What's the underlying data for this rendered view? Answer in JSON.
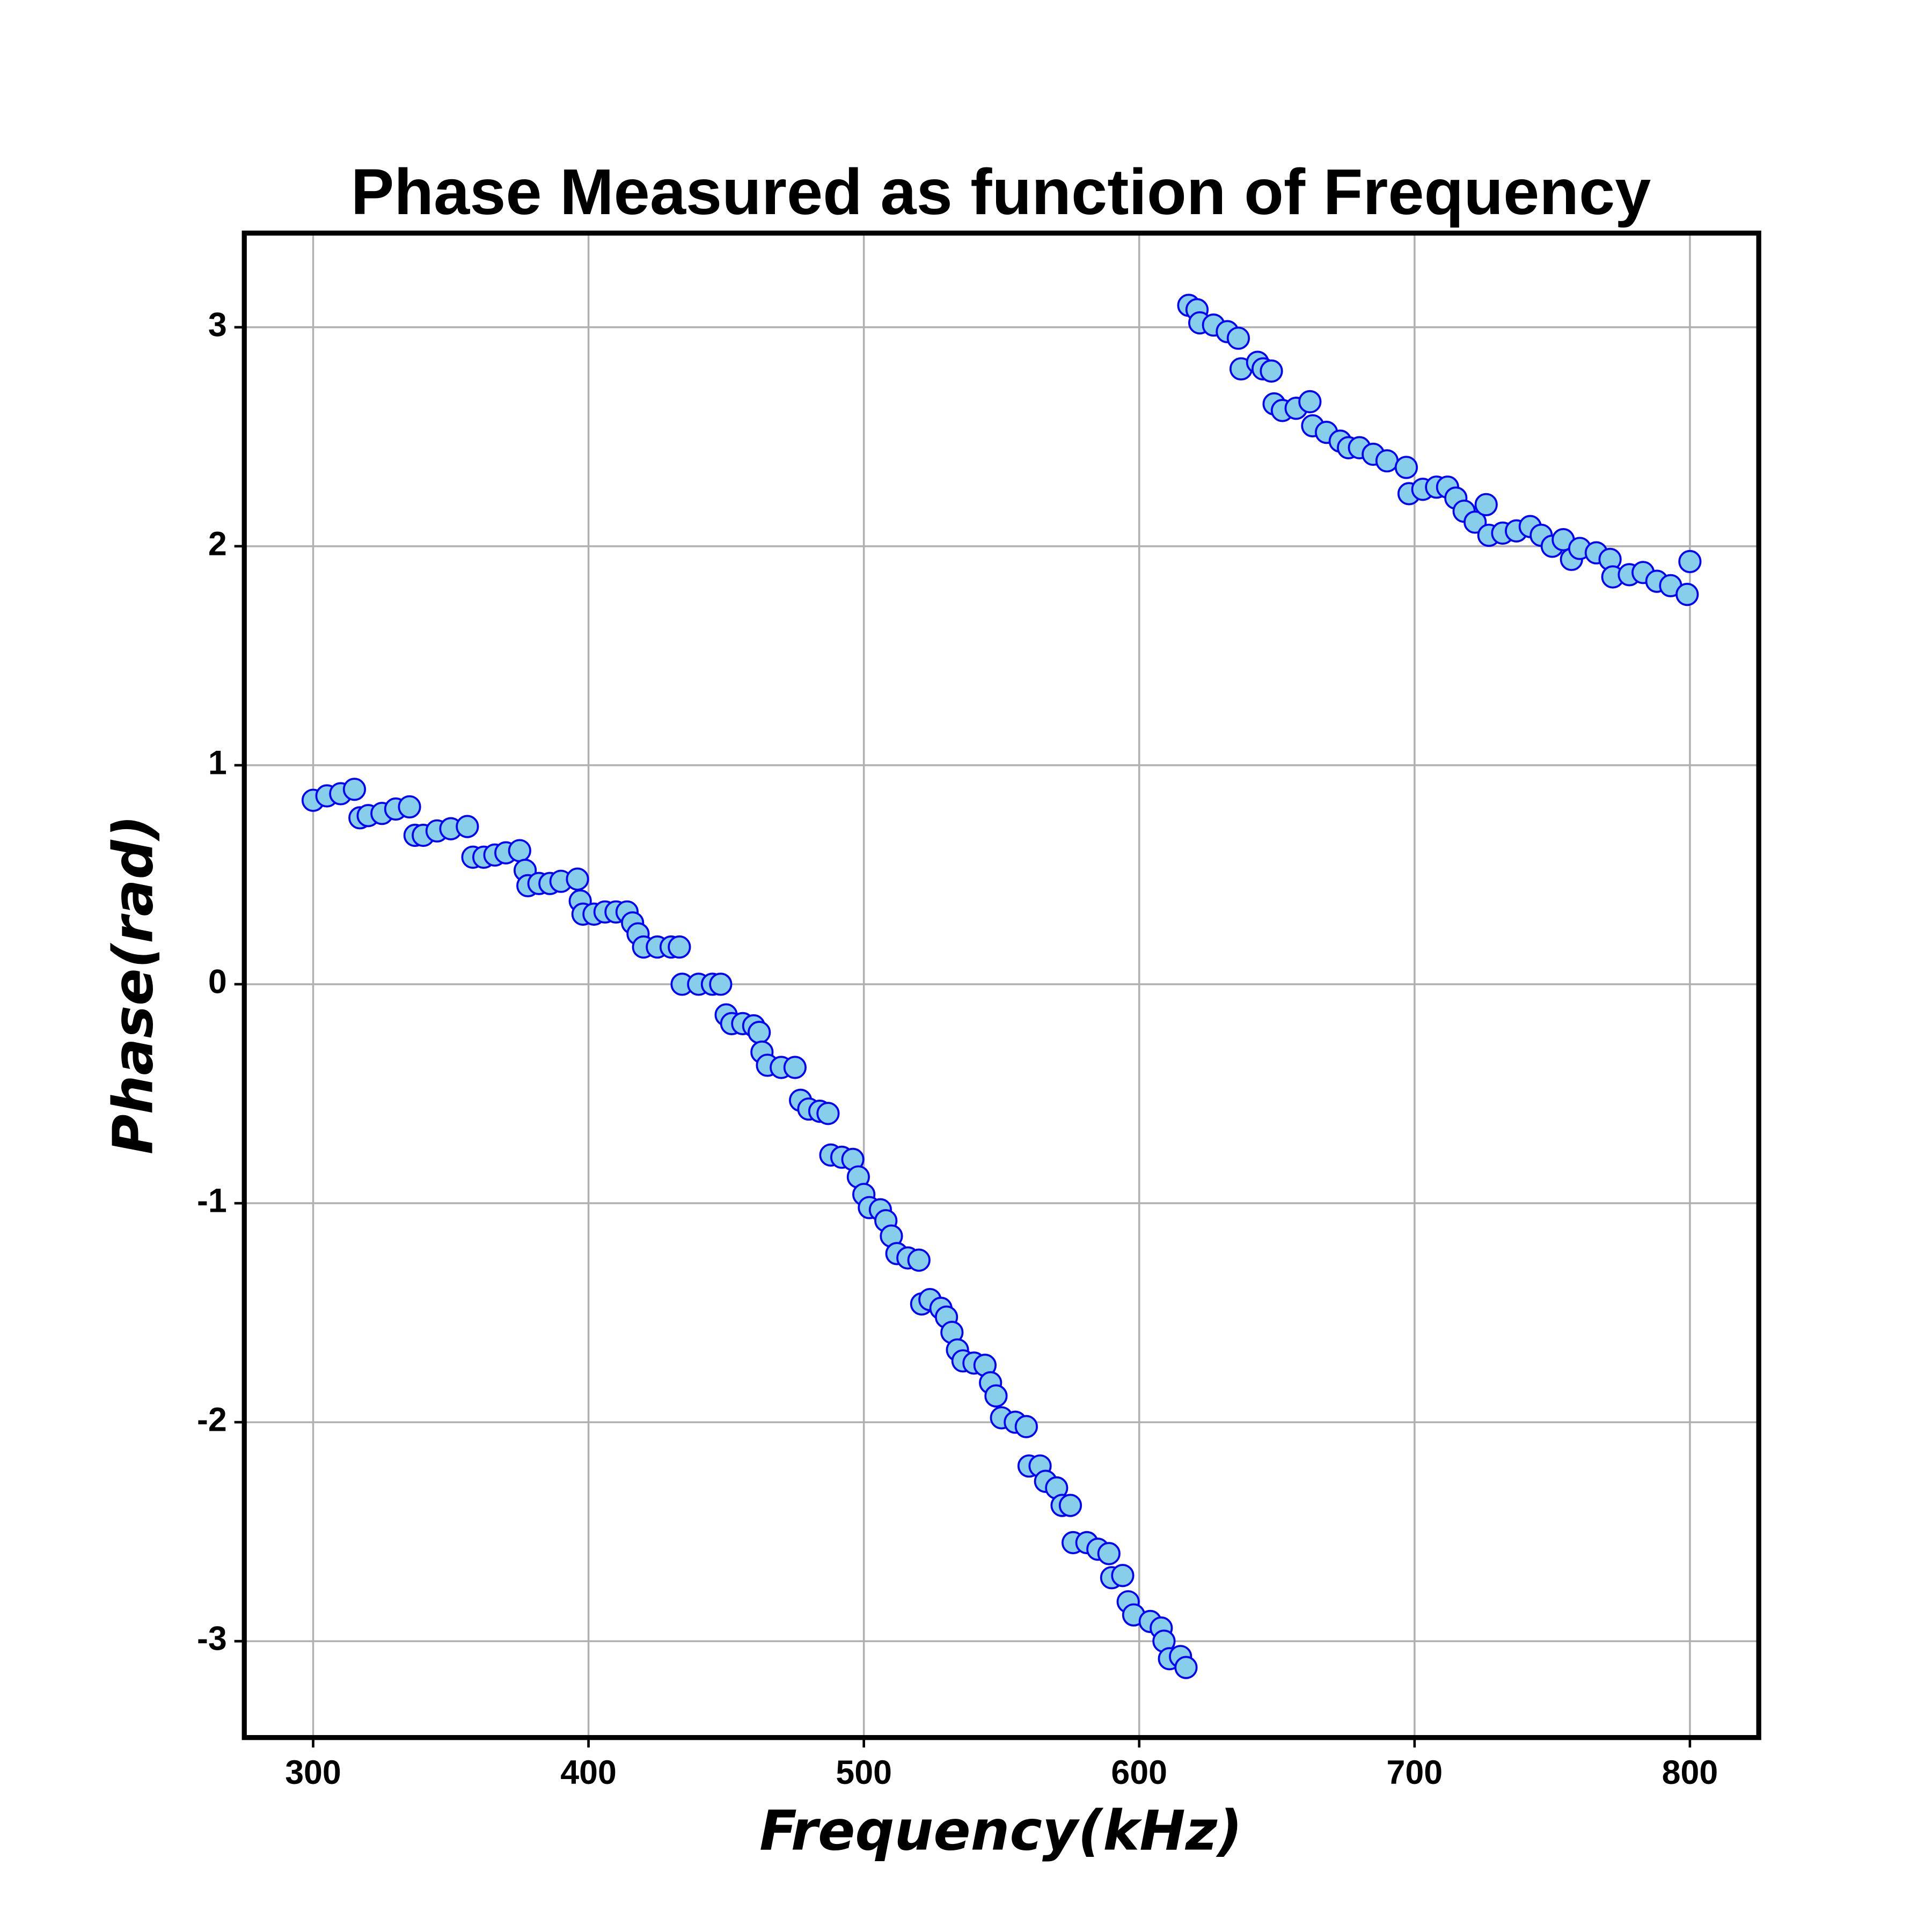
{
  "chart_data": {
    "type": "scatter",
    "title": "Phase Measured as function of Frequency",
    "x_label": "Frequency(kHz)",
    "y_label": "Phase(rad)",
    "x": [
      300,
      305,
      310,
      315,
      317,
      320,
      325,
      330,
      335,
      337,
      340,
      345,
      350,
      356,
      358,
      362,
      366,
      370,
      375,
      377,
      378,
      382,
      386,
      390,
      396,
      397,
      398,
      402,
      406,
      410,
      414,
      416,
      418,
      420,
      425,
      430,
      433,
      434,
      440,
      445,
      448,
      450,
      452,
      456,
      460,
      462,
      463,
      465,
      470,
      475,
      477,
      480,
      484,
      487,
      488,
      492,
      496,
      498,
      500,
      502,
      506,
      508,
      510,
      512,
      516,
      520,
      521,
      524,
      528,
      530,
      532,
      534,
      536,
      540,
      544,
      546,
      548,
      550,
      555,
      559,
      560,
      564,
      566,
      570,
      572,
      575,
      576,
      581,
      585,
      589,
      590,
      594,
      596,
      598,
      604,
      608,
      609,
      611,
      615,
      617,
      618,
      621,
      622,
      627,
      632,
      636,
      637,
      643,
      645,
      648,
      649,
      652,
      657,
      662,
      663,
      668,
      673,
      676,
      680,
      685,
      690,
      697,
      698,
      703,
      708,
      712,
      715,
      718,
      722,
      726,
      727,
      732,
      737,
      742,
      746,
      750,
      754,
      757,
      760,
      766,
      771,
      772,
      778,
      783,
      788,
      793,
      799,
      800
    ],
    "values": [
      0.84,
      0.86,
      0.87,
      0.89,
      0.76,
      0.77,
      0.78,
      0.8,
      0.81,
      0.68,
      0.68,
      0.7,
      0.71,
      0.72,
      0.58,
      0.58,
      0.59,
      0.6,
      0.61,
      0.52,
      0.45,
      0.46,
      0.46,
      0.47,
      0.48,
      0.38,
      0.32,
      0.32,
      0.33,
      0.33,
      0.33,
      0.28,
      0.23,
      0.17,
      0.17,
      0.17,
      0.17,
      0.0,
      0.0,
      0.0,
      0.0,
      -0.14,
      -0.18,
      -0.18,
      -0.19,
      -0.22,
      -0.31,
      -0.37,
      -0.38,
      -0.38,
      -0.53,
      -0.57,
      -0.58,
      -0.59,
      -0.78,
      -0.79,
      -0.8,
      -0.88,
      -0.96,
      -1.02,
      -1.03,
      -1.08,
      -1.15,
      -1.23,
      -1.25,
      -1.26,
      -1.46,
      -1.44,
      -1.48,
      -1.52,
      -1.59,
      -1.67,
      -1.72,
      -1.73,
      -1.74,
      -1.82,
      -1.88,
      -1.98,
      -2.0,
      -2.02,
      -2.2,
      -2.2,
      -2.27,
      -2.3,
      -2.38,
      -2.38,
      -2.55,
      -2.55,
      -2.58,
      -2.6,
      -2.71,
      -2.7,
      -2.82,
      -2.88,
      -2.91,
      -2.94,
      -3.0,
      -3.08,
      -3.07,
      -3.12,
      3.1,
      3.08,
      3.02,
      3.01,
      2.98,
      2.95,
      2.81,
      2.84,
      2.81,
      2.8,
      2.65,
      2.62,
      2.63,
      2.66,
      2.55,
      2.52,
      2.48,
      2.45,
      2.45,
      2.42,
      2.39,
      2.36,
      2.24,
      2.26,
      2.27,
      2.27,
      2.22,
      2.16,
      2.11,
      2.19,
      2.05,
      2.06,
      2.07,
      2.09,
      2.05,
      2.0,
      2.03,
      1.94,
      1.99,
      1.97,
      1.94,
      1.86,
      1.87,
      1.88,
      1.84,
      1.82,
      1.78,
      1.93
    ],
    "color": "#87ceeb",
    "edgecolor": "#0000ff",
    "xlim": [
      275,
      825
    ],
    "xticks": [
      300,
      400,
      500,
      600,
      700,
      800
    ],
    "ylim": [
      -3.44,
      3.43
    ],
    "yticks": [
      -3,
      -2,
      -1,
      0,
      1,
      2,
      3
    ],
    "grid": true
  }
}
